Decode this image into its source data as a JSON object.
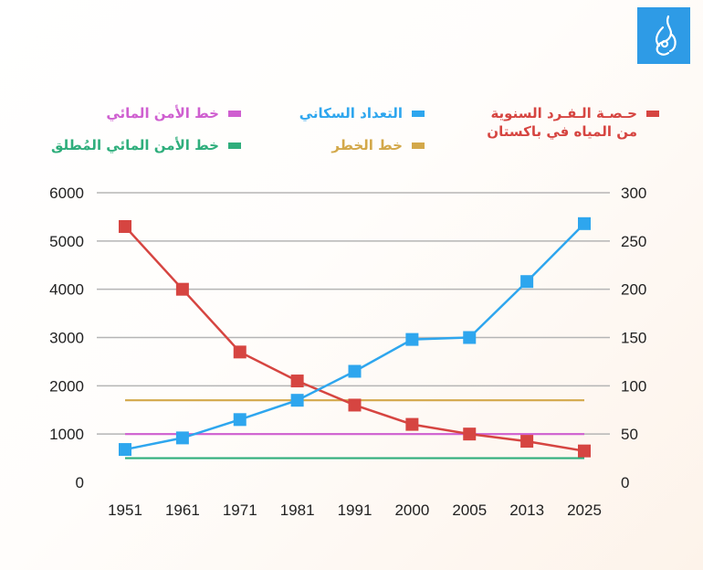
{
  "logo": {
    "name": "Al Jazeera",
    "color": "#2e9be6"
  },
  "legend": [
    {
      "label": "حـصـة الـفـرد السنوية\nمن المياه في باكستان",
      "color": "#d64541"
    },
    {
      "label": "التعداد السكاني",
      "color": "#2ea6ee"
    },
    {
      "label": "خط الأمن المائي",
      "color": "#cf5fd0"
    },
    {
      "label": "خط الخطر",
      "color": "#d3a84a"
    },
    {
      "label": "خط الأمن المائي المُطلق",
      "color": "#2fae7c"
    }
  ],
  "chart_data": {
    "type": "line",
    "categories": [
      "1951",
      "1961",
      "1971",
      "1981",
      "1991",
      "2000",
      "2005",
      "2013",
      "2025"
    ],
    "y_left": {
      "ylim": [
        0,
        6000
      ],
      "ticks": [
        "0",
        "1000",
        "2000",
        "3000",
        "4000",
        "5000",
        "6000"
      ]
    },
    "y_right": {
      "ylim": [
        0,
        300
      ],
      "ticks": [
        "0",
        "50",
        "100",
        "150",
        "200",
        "250",
        "300"
      ]
    },
    "grid": true,
    "series": [
      {
        "name": "حـصـة الـفـرد السنوية من المياه في باكستان",
        "axis": "left",
        "color": "#d64541",
        "marker": "square",
        "values": [
          5300,
          4000,
          2700,
          2100,
          1600,
          1200,
          1000,
          850,
          650
        ]
      },
      {
        "name": "التعداد السكاني",
        "axis": "right",
        "color": "#2ea6ee",
        "marker": "square",
        "values": [
          34,
          46,
          65,
          85,
          115,
          148,
          150,
          208,
          268
        ]
      },
      {
        "name": "خط الأمن المائي",
        "axis": "left",
        "color": "#cf5fd0",
        "values": [
          1000,
          1000,
          1000,
          1000,
          1000,
          1000,
          1000,
          1000,
          1000
        ]
      },
      {
        "name": "خط الخطر",
        "axis": "left",
        "color": "#d3a84a",
        "values": [
          1700,
          1700,
          1700,
          1700,
          1700,
          1700,
          1700,
          1700,
          1700
        ]
      },
      {
        "name": "خط الأمن المائي المُطلق",
        "axis": "left",
        "color": "#2fae7c",
        "values": [
          500,
          500,
          500,
          500,
          500,
          500,
          500,
          500,
          500
        ]
      }
    ]
  }
}
